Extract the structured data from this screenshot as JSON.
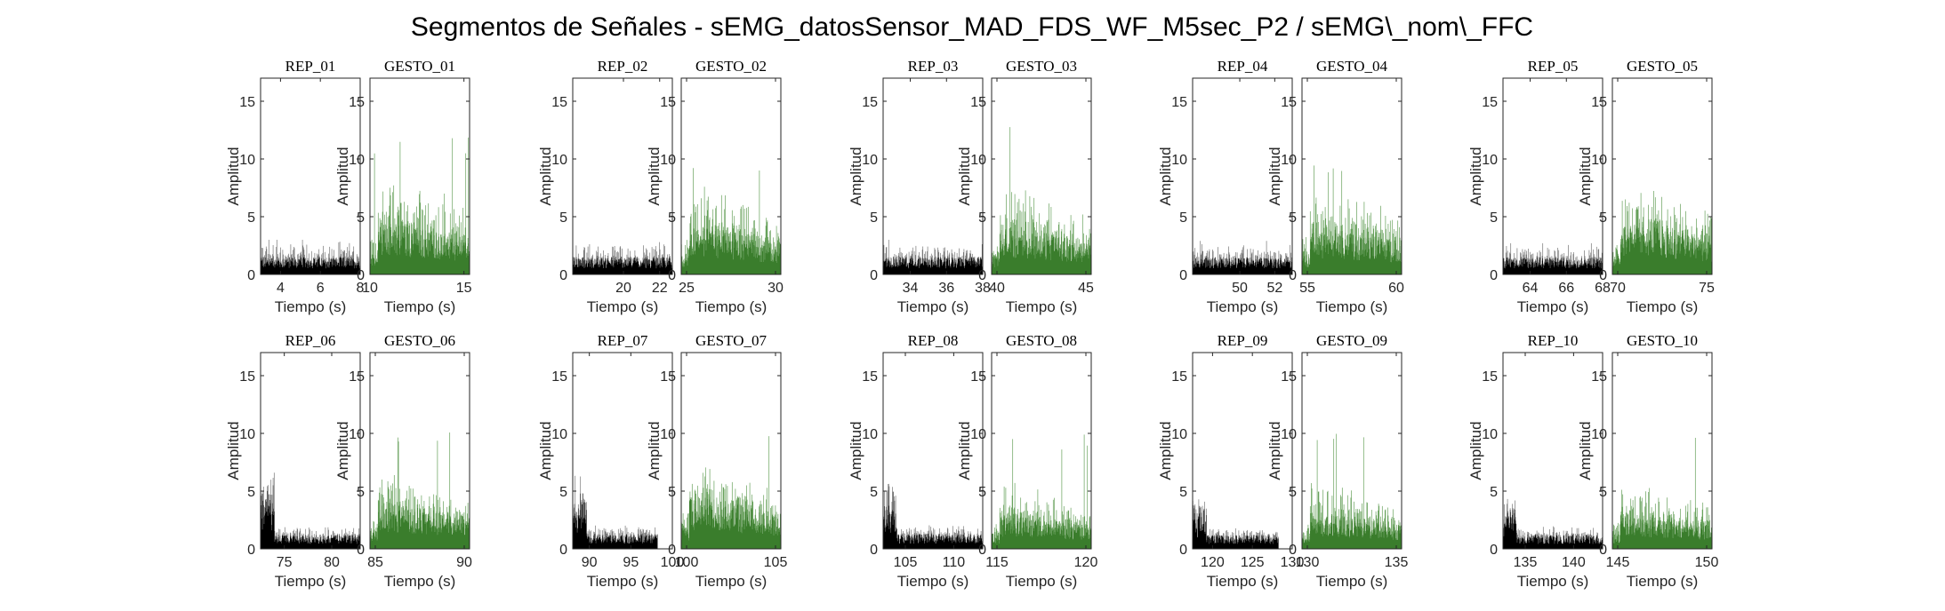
{
  "chart_data": {
    "type": "area",
    "title": "Segmentos de Señales - sEMG_datosSensor_MAD_FDS_WF_M5sec_P2 / sEMG\\_nom\\_FFC",
    "xlabel": "Tiempo (s)",
    "ylabel": "Amplitud",
    "ylim": [
      0,
      17
    ],
    "yticks": [
      0,
      5,
      10,
      15
    ],
    "colors": {
      "rep": "#000000",
      "gesto": "#3a7d2c",
      "rep_peak": "#777777",
      "gesto_peak": "#67a15b"
    },
    "panels": [
      {
        "title": "REP_01",
        "kind": "rep",
        "xlim": [
          3,
          8
        ],
        "xticks": [
          4,
          6,
          8
        ],
        "baseline": 1.5,
        "peak": 3.0,
        "burst": 0,
        "max": 3.0
      },
      {
        "title": "GESTO_01",
        "kind": "gesto",
        "xlim": [
          10,
          15.3
        ],
        "xticks": [
          10,
          15
        ],
        "baseline": 4.5,
        "peak": 9.0,
        "burst": 1.0,
        "max": 12.3
      },
      {
        "title": "REP_02",
        "kind": "rep",
        "xlim": [
          17.2,
          22.7
        ],
        "xticks": [
          20,
          22
        ],
        "baseline": 1.5,
        "peak": 2.8,
        "burst": 0,
        "max": 2.8
      },
      {
        "title": "GESTO_02",
        "kind": "gesto",
        "xlim": [
          24.7,
          30.3
        ],
        "xticks": [
          25,
          30
        ],
        "baseline": 4.0,
        "peak": 8.0,
        "burst": 0.5,
        "max": 9.6
      },
      {
        "title": "REP_03",
        "kind": "rep",
        "xlim": [
          32.5,
          38
        ],
        "xticks": [
          34,
          36,
          38
        ],
        "baseline": 1.5,
        "peak": 2.8,
        "burst": 0,
        "max": 3.0
      },
      {
        "title": "GESTO_03",
        "kind": "gesto",
        "xlim": [
          39.7,
          45.3
        ],
        "xticks": [
          40,
          45
        ],
        "baseline": 4.0,
        "peak": 8.0,
        "burst": 1.0,
        "max": 13.0
      },
      {
        "title": "REP_04",
        "kind": "rep",
        "xlim": [
          47.3,
          53
        ],
        "xticks": [
          50,
          52
        ],
        "baseline": 1.5,
        "peak": 2.8,
        "burst": 0,
        "max": 2.9
      },
      {
        "title": "GESTO_04",
        "kind": "gesto",
        "xlim": [
          54.7,
          60.3
        ],
        "xticks": [
          55,
          60
        ],
        "baseline": 4.0,
        "peak": 8.0,
        "burst": 0.5,
        "max": 10.0
      },
      {
        "title": "REP_05",
        "kind": "rep",
        "xlim": [
          62.5,
          68
        ],
        "xticks": [
          64,
          66,
          68
        ],
        "baseline": 1.5,
        "peak": 2.6,
        "burst": 0,
        "max": 2.7
      },
      {
        "title": "GESTO_05",
        "kind": "gesto",
        "xlim": [
          69.7,
          75.3
        ],
        "xticks": [
          70,
          75
        ],
        "baseline": 4.5,
        "peak": 8.0,
        "burst": 0.5,
        "max": 10.0
      },
      {
        "title": "REP_06",
        "kind": "rep",
        "xlim": [
          72.5,
          83
        ],
        "xticks": [
          75,
          80
        ],
        "baseline": 1.2,
        "peak": 2.0,
        "burst": 6.0,
        "max": 7.5
      },
      {
        "title": "GESTO_06",
        "kind": "gesto",
        "xlim": [
          84.7,
          90.3
        ],
        "xticks": [
          85,
          90
        ],
        "baseline": 4.0,
        "peak": 6.5,
        "burst": 0.5,
        "max": 10.8
      },
      {
        "title": "REP_07",
        "kind": "rep",
        "xlim": [
          88,
          100
        ],
        "xticks": [
          90,
          95,
          100
        ],
        "baseline": 1.3,
        "peak": 2.2,
        "burst": 5.0,
        "max": 6.8,
        "end": 98.2
      },
      {
        "title": "GESTO_07",
        "kind": "gesto",
        "xlim": [
          99.7,
          105.3
        ],
        "xticks": [
          100,
          105
        ],
        "baseline": 4.5,
        "peak": 8.0,
        "burst": 0.5,
        "max": 11.2
      },
      {
        "title": "REP_08",
        "kind": "rep",
        "xlim": [
          102.7,
          113
        ],
        "xticks": [
          105,
          110
        ],
        "baseline": 1.3,
        "peak": 2.2,
        "burst": 5.5,
        "max": 7.2
      },
      {
        "title": "GESTO_08",
        "kind": "gesto",
        "xlim": [
          114.7,
          120.3
        ],
        "xticks": [
          115,
          120
        ],
        "baseline": 3.0,
        "peak": 6.0,
        "burst": 0.5,
        "max": 10.0
      },
      {
        "title": "REP_09",
        "kind": "rep",
        "xlim": [
          117.5,
          130
        ],
        "xticks": [
          120,
          125,
          130
        ],
        "baseline": 1.2,
        "peak": 2.0,
        "burst": 4.5,
        "max": 6.0,
        "end": 128.3
      },
      {
        "title": "GESTO_09",
        "kind": "gesto",
        "xlim": [
          129.7,
          135.3
        ],
        "xticks": [
          130,
          135
        ],
        "baseline": 3.0,
        "peak": 6.0,
        "burst": 0.5,
        "max": 10.0
      },
      {
        "title": "REP_10",
        "kind": "rep",
        "xlim": [
          132.7,
          143
        ],
        "xticks": [
          135,
          140
        ],
        "baseline": 1.2,
        "peak": 2.0,
        "burst": 4.0,
        "max": 5.3
      },
      {
        "title": "GESTO_10",
        "kind": "gesto",
        "xlim": [
          144.7,
          150.3
        ],
        "xticks": [
          145,
          150
        ],
        "baseline": 3.0,
        "peak": 6.0,
        "burst": 0.5,
        "max": 10.0
      }
    ]
  }
}
